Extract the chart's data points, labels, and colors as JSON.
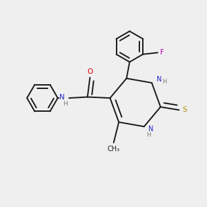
{
  "background_color": "#efefef",
  "bond_color": "#1a1a1a",
  "bond_width": 1.4,
  "dbo": 0.018,
  "N_color": "#2020cc",
  "O_color": "#dd0000",
  "S_color": "#b89000",
  "F_color": "#bb00bb",
  "H_color": "#777777",
  "font_size": 7.0,
  "fig_size": [
    3.0,
    3.0
  ],
  "dpi": 100,
  "xlim": [
    0,
    10
  ],
  "ylim": [
    0,
    10
  ]
}
